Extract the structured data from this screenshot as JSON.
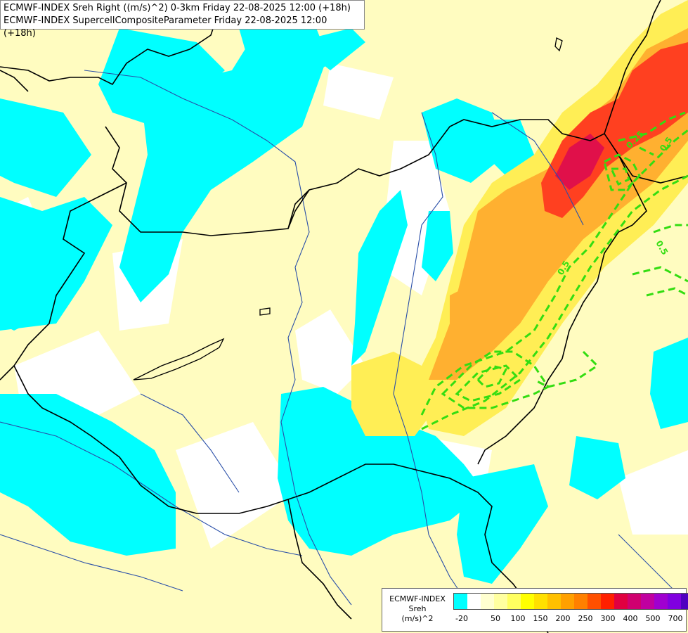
{
  "title": {
    "line1": "ECMWF-INDEX Sreh Right ((m/s)^2) 0-3km Friday 22-08-2025 12:00 (+18h)",
    "line2": "ECMWF-INDEX SupercellCompositeParameter Friday 22-08-2025 12:00 (+18h)"
  },
  "contour_labels": {
    "a": "0.5",
    "b": "0.5",
    "c": "0.5",
    "d": "0.25"
  },
  "legend": {
    "line1": "ECMWF-INDEX",
    "line2": "Sreh",
    "line3": "(m/s)^2",
    "colors": [
      "#00ffff",
      "#ffffff",
      "#ffffd0",
      "#ffffa0",
      "#ffff60",
      "#ffff00",
      "#ffe000",
      "#ffc000",
      "#ffa000",
      "#ff8000",
      "#ff5000",
      "#ff2000",
      "#e00040",
      "#d00070",
      "#c000a0",
      "#a000d0",
      "#8000e0",
      "#5000c0",
      "#2000a0",
      "#000080"
    ],
    "ticks": [
      "-20",
      "50",
      "100",
      "150",
      "200",
      "250",
      "300",
      "400",
      "500",
      "700"
    ]
  },
  "colors": {
    "cyan": "#00ffff",
    "pale_yellow": "#fffcc0",
    "yellow": "#ffee55",
    "orange": "#ffb030",
    "red": "#ff4020",
    "crimson": "#e0104a",
    "contour": "#33dd11",
    "border": "#000000",
    "river": "#2a4fa8"
  }
}
